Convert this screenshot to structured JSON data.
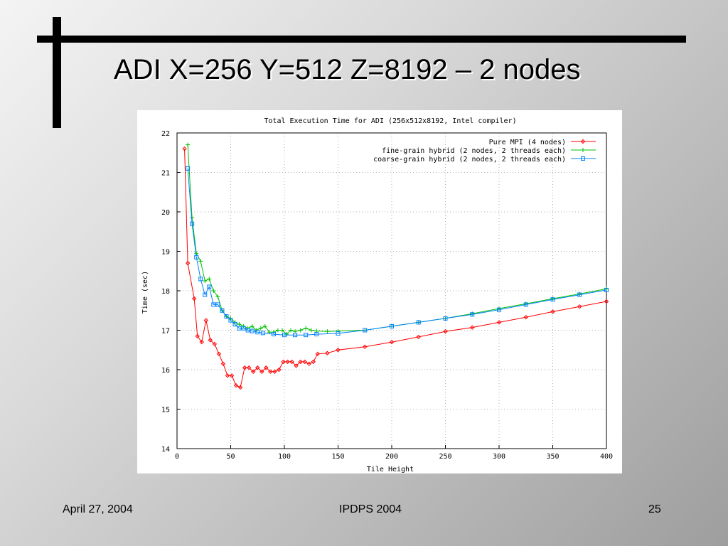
{
  "slide": {
    "title": "ADI X=256 Y=512 Z=8192 – 2 nodes",
    "footer_date": "April 27, 2004",
    "footer_conference": "IPDPS 2004",
    "footer_page": "25"
  },
  "chart_data": {
    "type": "line",
    "title": "Total Execution Time for ADI (256x512x8192, Intel compiler)",
    "xlabel": "Tile Height",
    "ylabel": "Time (sec)",
    "xlim": [
      0,
      400
    ],
    "ylim": [
      14,
      22
    ],
    "xticks": [
      0,
      50,
      100,
      150,
      200,
      250,
      300,
      350,
      400
    ],
    "yticks": [
      14,
      15,
      16,
      17,
      18,
      19,
      20,
      21,
      22
    ],
    "grid": true,
    "legend_position": "top-right",
    "series": [
      {
        "name": "Pure MPI (4 nodes)",
        "color": "#ff0000",
        "marker": "diamond",
        "points": [
          [
            7,
            21.6
          ],
          [
            10,
            18.7
          ],
          [
            16,
            17.8
          ],
          [
            19,
            16.85
          ],
          [
            23,
            16.7
          ],
          [
            27,
            17.25
          ],
          [
            31,
            16.75
          ],
          [
            35,
            16.65
          ],
          [
            39,
            16.4
          ],
          [
            43,
            16.15
          ],
          [
            47,
            15.85
          ],
          [
            51,
            15.85
          ],
          [
            55,
            15.6
          ],
          [
            59,
            15.55
          ],
          [
            63,
            16.05
          ],
          [
            67,
            16.05
          ],
          [
            71,
            15.95
          ],
          [
            75,
            16.05
          ],
          [
            79,
            15.95
          ],
          [
            83,
            16.05
          ],
          [
            87,
            15.95
          ],
          [
            91,
            15.95
          ],
          [
            95,
            16.0
          ],
          [
            99,
            16.2
          ],
          [
            103,
            16.2
          ],
          [
            107,
            16.2
          ],
          [
            111,
            16.1
          ],
          [
            115,
            16.2
          ],
          [
            119,
            16.2
          ],
          [
            123,
            16.15
          ],
          [
            127,
            16.2
          ],
          [
            131,
            16.4
          ],
          [
            140,
            16.42
          ],
          [
            150,
            16.5
          ],
          [
            175,
            16.58
          ],
          [
            200,
            16.7
          ],
          [
            225,
            16.83
          ],
          [
            250,
            16.97
          ],
          [
            275,
            17.07
          ],
          [
            300,
            17.2
          ],
          [
            325,
            17.33
          ],
          [
            350,
            17.47
          ],
          [
            375,
            17.6
          ],
          [
            400,
            17.73
          ]
        ]
      },
      {
        "name": "fine-grain hybrid (2 nodes, 2 threads each)",
        "color": "#00c000",
        "marker": "plus",
        "points": [
          [
            10,
            21.7
          ],
          [
            14,
            19.85
          ],
          [
            18,
            18.95
          ],
          [
            22,
            18.75
          ],
          [
            26,
            18.25
          ],
          [
            30,
            18.3
          ],
          [
            34,
            18.0
          ],
          [
            38,
            17.85
          ],
          [
            42,
            17.5
          ],
          [
            46,
            17.35
          ],
          [
            50,
            17.3
          ],
          [
            54,
            17.2
          ],
          [
            58,
            17.15
          ],
          [
            62,
            17.1
          ],
          [
            66,
            17.05
          ],
          [
            70,
            17.1
          ],
          [
            74,
            17.0
          ],
          [
            78,
            17.05
          ],
          [
            82,
            17.1
          ],
          [
            86,
            16.95
          ],
          [
            90,
            16.95
          ],
          [
            94,
            17.0
          ],
          [
            98,
            17.0
          ],
          [
            102,
            16.9
          ],
          [
            106,
            17.0
          ],
          [
            110,
            16.97
          ],
          [
            115,
            17.0
          ],
          [
            120,
            17.05
          ],
          [
            125,
            17.0
          ],
          [
            130,
            16.98
          ],
          [
            140,
            16.97
          ],
          [
            150,
            16.98
          ],
          [
            175,
            17.0
          ],
          [
            200,
            17.1
          ],
          [
            225,
            17.2
          ],
          [
            250,
            17.3
          ],
          [
            275,
            17.42
          ],
          [
            300,
            17.55
          ],
          [
            325,
            17.67
          ],
          [
            350,
            17.8
          ],
          [
            375,
            17.92
          ],
          [
            400,
            18.05
          ]
        ]
      },
      {
        "name": "coarse-grain hybrid (2 nodes, 2 threads each)",
        "color": "#0080ff",
        "marker": "square",
        "points": [
          [
            10,
            21.1
          ],
          [
            14,
            19.7
          ],
          [
            18,
            18.85
          ],
          [
            22,
            18.3
          ],
          [
            26,
            17.9
          ],
          [
            30,
            18.1
          ],
          [
            34,
            17.65
          ],
          [
            38,
            17.65
          ],
          [
            42,
            17.5
          ],
          [
            46,
            17.35
          ],
          [
            50,
            17.25
          ],
          [
            54,
            17.15
          ],
          [
            58,
            17.05
          ],
          [
            62,
            17.05
          ],
          [
            66,
            17.0
          ],
          [
            70,
            16.98
          ],
          [
            75,
            16.95
          ],
          [
            80,
            16.93
          ],
          [
            90,
            16.9
          ],
          [
            100,
            16.88
          ],
          [
            110,
            16.88
          ],
          [
            120,
            16.88
          ],
          [
            130,
            16.9
          ],
          [
            150,
            16.92
          ],
          [
            175,
            17.0
          ],
          [
            200,
            17.1
          ],
          [
            225,
            17.2
          ],
          [
            250,
            17.3
          ],
          [
            275,
            17.4
          ],
          [
            300,
            17.52
          ],
          [
            325,
            17.65
          ],
          [
            350,
            17.78
          ],
          [
            375,
            17.9
          ],
          [
            400,
            18.02
          ]
        ]
      }
    ]
  }
}
